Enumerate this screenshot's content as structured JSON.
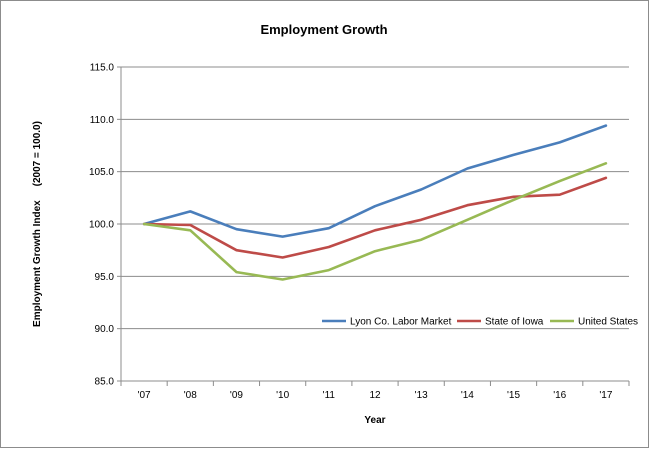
{
  "chart_data": {
    "type": "line",
    "title": "Employment Growth",
    "xlabel": "Year",
    "ylabel": "Employment Growth Index     (2007 = 100.0)",
    "categories": [
      "'07",
      "'08",
      "'09",
      "'10",
      "'11",
      "12",
      "'13",
      "'14",
      "'15",
      "'16",
      "'17"
    ],
    "ylim": [
      85,
      115
    ],
    "yticks": [
      "85.0",
      "90.0",
      "95.0",
      "100.0",
      "105.0",
      "110.0",
      "115.0"
    ],
    "grid": true,
    "legend_position": "lower-right",
    "series": [
      {
        "name": "Lyon Co. Labor Market",
        "color": "#4a7ebb",
        "values": [
          100.0,
          101.2,
          99.5,
          98.8,
          99.6,
          101.7,
          103.3,
          105.3,
          106.6,
          107.8,
          109.4
        ]
      },
      {
        "name": "State of Iowa",
        "color": "#be4b48",
        "values": [
          100.0,
          99.9,
          97.5,
          96.8,
          97.8,
          99.4,
          100.4,
          101.8,
          102.6,
          102.8,
          104.4
        ]
      },
      {
        "name": "United States",
        "color": "#98b954",
        "values": [
          100.0,
          99.4,
          95.4,
          94.7,
          95.6,
          97.4,
          98.5,
          100.4,
          102.3,
          104.1,
          105.8
        ]
      }
    ]
  }
}
